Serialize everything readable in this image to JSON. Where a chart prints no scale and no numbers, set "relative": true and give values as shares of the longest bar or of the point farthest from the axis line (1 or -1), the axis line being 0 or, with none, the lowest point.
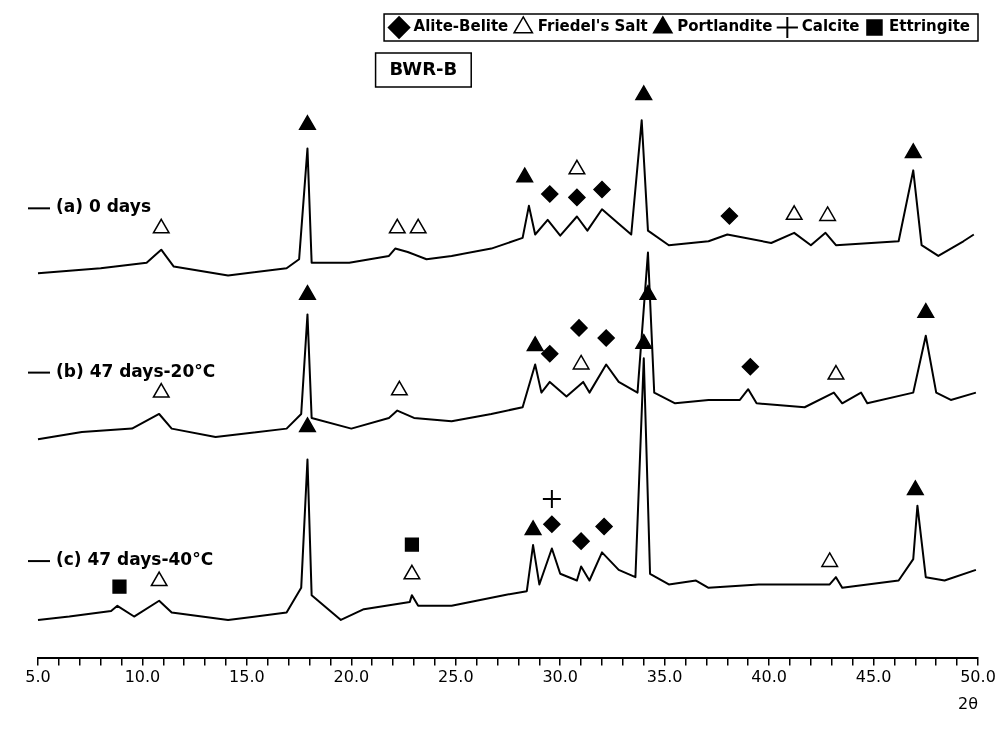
{
  "chart_data": {
    "type": "line",
    "title": "BWR-B",
    "xlabel": "2θ",
    "relative": true,
    "grid": false,
    "legend": "top right",
    "xlim": [
      5,
      50
    ],
    "xticks": [
      {
        "value": 5,
        "label": "5.0"
      },
      {
        "value": 6,
        "label": null
      },
      {
        "value": 7,
        "label": null
      },
      {
        "value": 8,
        "label": null
      },
      {
        "value": 9,
        "label": null
      },
      {
        "value": 10,
        "label": "10.0"
      },
      {
        "value": 11,
        "label": null
      },
      {
        "value": 12,
        "label": null
      },
      {
        "value": 13,
        "label": null
      },
      {
        "value": 14,
        "label": null
      },
      {
        "value": 15,
        "label": "15.0"
      },
      {
        "value": 16,
        "label": null
      },
      {
        "value": 17,
        "label": null
      },
      {
        "value": 18,
        "label": null
      },
      {
        "value": 19,
        "label": null
      },
      {
        "value": 20,
        "label": "20.0"
      },
      {
        "value": 21,
        "label": null
      },
      {
        "value": 22,
        "label": null
      },
      {
        "value": 23,
        "label": null
      },
      {
        "value": 24,
        "label": null
      },
      {
        "value": 25,
        "label": "25.0"
      },
      {
        "value": 26,
        "label": null
      },
      {
        "value": 27,
        "label": null
      },
      {
        "value": 28,
        "label": null
      },
      {
        "value": 29,
        "label": null
      },
      {
        "value": 30,
        "label": "30.0"
      },
      {
        "value": 31,
        "label": null
      },
      {
        "value": 32,
        "label": null
      },
      {
        "value": 33,
        "label": null
      },
      {
        "value": 34,
        "label": null
      },
      {
        "value": 35,
        "label": "35.0"
      },
      {
        "value": 36,
        "label": null
      },
      {
        "value": 37,
        "label": null
      },
      {
        "value": 38,
        "label": null
      },
      {
        "value": 39,
        "label": null
      },
      {
        "value": 40,
        "label": "40.0"
      },
      {
        "value": 41,
        "label": null
      },
      {
        "value": 42,
        "label": null
      },
      {
        "value": 43,
        "label": null
      },
      {
        "value": 44,
        "label": null
      },
      {
        "value": 45,
        "label": "45.0"
      },
      {
        "value": 46,
        "label": null
      },
      {
        "value": 47,
        "label": null
      },
      {
        "value": 48,
        "label": null
      },
      {
        "value": 49,
        "label": null
      },
      {
        "value": 50,
        "label": "50.0"
      }
    ],
    "series": [
      {
        "name": "(a) 0 days",
        "type": "line",
        "color": "#000000",
        "x": [
          5.0,
          8.0,
          10.2,
          10.9,
          11.5,
          14.1,
          16.9,
          17.5,
          17.9,
          18.1,
          19.9,
          21.8,
          22.1,
          22.7,
          23.6,
          24.8,
          26.7,
          28.2,
          28.5,
          28.8,
          29.4,
          30.0,
          30.8,
          31.3,
          32.0,
          32.8,
          33.4,
          33.9,
          34.2,
          35.2,
          37.1,
          38.0,
          40.1,
          41.2,
          42.0,
          42.7,
          43.2,
          46.2,
          46.9,
          47.3,
          48.1,
          49.3,
          49.8
        ],
        "values": [
          0.683,
          0.692,
          0.702,
          0.725,
          0.695,
          0.679,
          0.692,
          0.708,
          0.905,
          0.702,
          0.702,
          0.714,
          0.727,
          0.721,
          0.708,
          0.714,
          0.727,
          0.746,
          0.803,
          0.752,
          0.778,
          0.75,
          0.784,
          0.759,
          0.797,
          0.771,
          0.752,
          0.955,
          0.759,
          0.733,
          0.74,
          0.752,
          0.737,
          0.755,
          0.733,
          0.755,
          0.733,
          0.74,
          0.866,
          0.733,
          0.714,
          0.74,
          0.752
        ]
      },
      {
        "name": "(b) 47 days-20°C",
        "type": "line",
        "color": "#000000",
        "x": [
          5.0,
          7.1,
          9.5,
          10.8,
          11.4,
          13.5,
          16.9,
          17.6,
          17.9,
          18.1,
          20.0,
          21.8,
          22.2,
          23.0,
          24.8,
          26.7,
          28.2,
          28.8,
          29.1,
          29.5,
          30.3,
          31.1,
          31.4,
          32.2,
          32.8,
          33.7,
          34.2,
          34.5,
          35.5,
          37.1,
          38.6,
          39.0,
          39.4,
          41.7,
          43.1,
          43.5,
          44.4,
          44.7,
          46.9,
          47.5,
          48.0,
          48.7,
          49.9
        ],
        "values": [
          0.388,
          0.401,
          0.407,
          0.433,
          0.407,
          0.392,
          0.407,
          0.433,
          0.61,
          0.426,
          0.407,
          0.426,
          0.439,
          0.426,
          0.42,
          0.433,
          0.445,
          0.521,
          0.471,
          0.49,
          0.464,
          0.49,
          0.471,
          0.521,
          0.49,
          0.471,
          0.72,
          0.471,
          0.452,
          0.458,
          0.458,
          0.477,
          0.452,
          0.445,
          0.471,
          0.452,
          0.471,
          0.452,
          0.471,
          0.572,
          0.471,
          0.458,
          0.471
        ]
      },
      {
        "name": "(c) 47 days-40°C",
        "type": "line",
        "color": "#000000",
        "x": [
          5.0,
          6.5,
          8.5,
          8.8,
          9.6,
          10.8,
          11.4,
          14.1,
          16.9,
          17.6,
          17.9,
          18.1,
          19.5,
          20.6,
          22.8,
          22.9,
          23.2,
          24.8,
          27.3,
          28.4,
          28.7,
          29.0,
          29.6,
          30.0,
          30.8,
          31.0,
          31.4,
          32.0,
          32.8,
          33.6,
          34.0,
          34.3,
          35.2,
          36.5,
          37.1,
          39.5,
          41.1,
          42.9,
          43.2,
          43.5,
          46.2,
          46.9,
          47.1,
          47.5,
          48.4,
          49.9
        ],
        "values": [
          0.067,
          0.073,
          0.083,
          0.092,
          0.073,
          0.101,
          0.08,
          0.067,
          0.08,
          0.124,
          0.352,
          0.111,
          0.067,
          0.086,
          0.099,
          0.111,
          0.092,
          0.092,
          0.111,
          0.118,
          0.2,
          0.13,
          0.194,
          0.149,
          0.137,
          0.162,
          0.137,
          0.187,
          0.156,
          0.143,
          0.532,
          0.149,
          0.13,
          0.137,
          0.124,
          0.13,
          0.13,
          0.13,
          0.143,
          0.124,
          0.137,
          0.175,
          0.27,
          0.143,
          0.137,
          0.156
        ]
      },
      {
        "name": "Alite-Belite",
        "type": "scatter",
        "marker": "diamond",
        "color": "#000000",
        "x": [
          29.5,
          30.8,
          32.0,
          38.1,
          29.5,
          30.9,
          32.2,
          39.1,
          29.6,
          31.0,
          32.1
        ],
        "values": [
          0.824,
          0.818,
          0.832,
          0.785,
          0.54,
          0.586,
          0.568,
          0.517,
          0.237,
          0.207,
          0.233
        ]
      },
      {
        "name": "Friedel's Salt",
        "type": "scatter",
        "marker": "triangle",
        "color": "#ffffff",
        "x": [
          10.9,
          22.2,
          23.2,
          30.8,
          41.2,
          42.8,
          10.9,
          22.3,
          31.0,
          43.2,
          10.8,
          22.9,
          42.9
        ],
        "values": [
          0.763,
          0.763,
          0.763,
          0.868,
          0.787,
          0.785,
          0.471,
          0.475,
          0.521,
          0.503,
          0.136,
          0.148,
          0.17
        ]
      },
      {
        "name": "Portlandite",
        "type": "scatter",
        "marker": "triangle",
        "color": "#000000",
        "x": [
          17.9,
          28.3,
          34.0,
          46.9,
          17.9,
          28.8,
          34.2,
          47.5,
          17.9,
          28.7,
          34.0,
          47.0
        ],
        "values": [
          0.947,
          0.854,
          1.0,
          0.897,
          0.645,
          0.554,
          0.645,
          0.613,
          0.41,
          0.227,
          0.558,
          0.298
        ]
      },
      {
        "name": "Calcite",
        "type": "scatter",
        "marker": "cross",
        "color": "#000000",
        "x": [
          29.6
        ],
        "values": [
          0.282
        ]
      },
      {
        "name": "Ettringite",
        "type": "scatter",
        "marker": "square",
        "color": "#000000",
        "x": [
          8.9,
          22.9
        ],
        "values": [
          0.126,
          0.201
        ]
      }
    ]
  }
}
